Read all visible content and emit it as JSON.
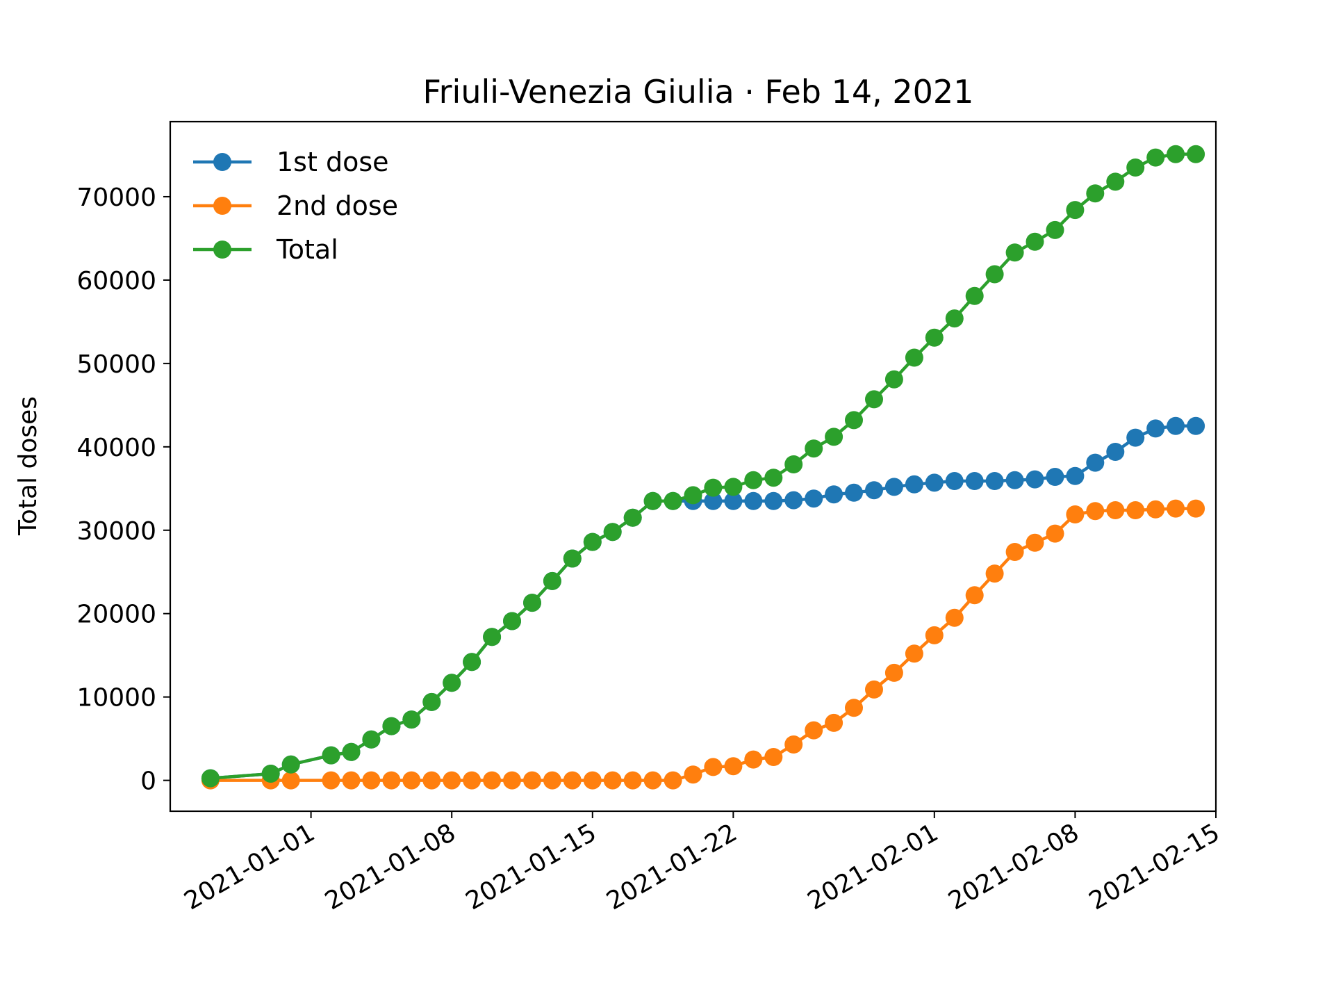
{
  "chart_data": {
    "type": "line",
    "title": "Friuli-Venezia Giulia · Feb 14, 2021",
    "xlabel": "",
    "ylabel": "Total doses",
    "xlim": [
      "2020-12-25",
      "2021-02-15"
    ],
    "ylim": [
      -3700,
      79000
    ],
    "grid": false,
    "legend_position": "top-left",
    "x_ticks": [
      "2021-01-01",
      "2021-01-08",
      "2021-01-15",
      "2021-01-22",
      "2021-02-01",
      "2021-02-08",
      "2021-02-15"
    ],
    "y_ticks": [
      0,
      10000,
      20000,
      30000,
      40000,
      50000,
      60000,
      70000
    ],
    "x": [
      "2020-12-27",
      "2020-12-30",
      "2020-12-31",
      "2021-01-02",
      "2021-01-03",
      "2021-01-04",
      "2021-01-05",
      "2021-01-06",
      "2021-01-07",
      "2021-01-08",
      "2021-01-09",
      "2021-01-10",
      "2021-01-11",
      "2021-01-12",
      "2021-01-13",
      "2021-01-14",
      "2021-01-15",
      "2021-01-16",
      "2021-01-17",
      "2021-01-18",
      "2021-01-19",
      "2021-01-20",
      "2021-01-21",
      "2021-01-22",
      "2021-01-23",
      "2021-01-24",
      "2021-01-25",
      "2021-01-26",
      "2021-01-27",
      "2021-01-28",
      "2021-01-29",
      "2021-01-30",
      "2021-01-31",
      "2021-02-01",
      "2021-02-02",
      "2021-02-03",
      "2021-02-04",
      "2021-02-05",
      "2021-02-06",
      "2021-02-07",
      "2021-02-08",
      "2021-02-09",
      "2021-02-10",
      "2021-02-11",
      "2021-02-12",
      "2021-02-13",
      "2021-02-14"
    ],
    "series": [
      {
        "name": "1st dose",
        "color": "#1f77b4",
        "values": [
          250,
          800,
          1900,
          3000,
          3400,
          4900,
          6500,
          7300,
          9400,
          11700,
          14200,
          17200,
          19100,
          21300,
          23900,
          26600,
          28600,
          29800,
          31500,
          33500,
          33500,
          33500,
          33500,
          33500,
          33500,
          33500,
          33600,
          33800,
          34300,
          34500,
          34800,
          35200,
          35500,
          35700,
          35900,
          35900,
          35900,
          36000,
          36100,
          36400,
          36500,
          38100,
          39400,
          41100,
          42200,
          42500,
          42500
        ]
      },
      {
        "name": "2nd dose",
        "color": "#ff7f0e",
        "values": [
          0,
          0,
          0,
          0,
          0,
          0,
          0,
          0,
          0,
          0,
          0,
          0,
          0,
          0,
          0,
          0,
          0,
          0,
          0,
          0,
          0,
          700,
          1600,
          1700,
          2500,
          2800,
          4300,
          6000,
          6900,
          8700,
          10900,
          12900,
          15200,
          17400,
          19500,
          22200,
          24800,
          27400,
          28500,
          29600,
          31900,
          32300,
          32400,
          32400,
          32500,
          32600,
          32600
        ]
      },
      {
        "name": "Total",
        "color": "#2ca02c",
        "values": [
          250,
          800,
          1900,
          3000,
          3400,
          4900,
          6500,
          7300,
          9400,
          11700,
          14200,
          17200,
          19100,
          21300,
          23900,
          26600,
          28600,
          29800,
          31500,
          33500,
          33500,
          34200,
          35100,
          35200,
          36000,
          36300,
          37900,
          39800,
          41200,
          43200,
          45700,
          48100,
          50700,
          53100,
          55400,
          58100,
          60700,
          63300,
          64600,
          66000,
          68400,
          70400,
          71800,
          73500,
          74700,
          75100,
          75100
        ]
      }
    ]
  }
}
